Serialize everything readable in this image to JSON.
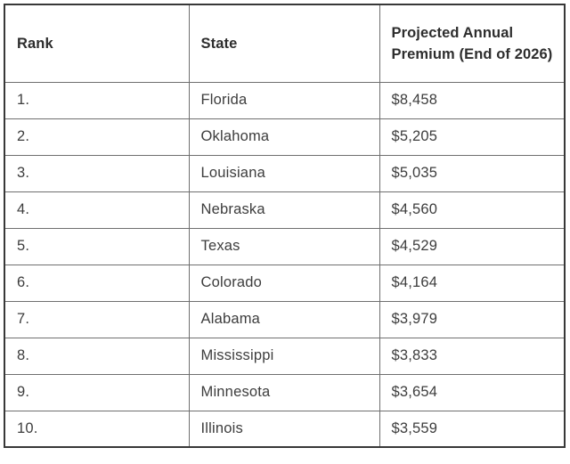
{
  "colors": {
    "background": "#ffffff",
    "cell_text": "#3d3d3d",
    "header_text": "#2d2d2d",
    "inner_border": "#6f6f6f",
    "outer_border": "#383838"
  },
  "table": {
    "columns": [
      "Rank",
      "State",
      "Projected Annual Premium (End of 2026)"
    ],
    "rows": [
      [
        "1.",
        "Florida",
        "$8,458"
      ],
      [
        "2.",
        "Oklahoma",
        "$5,205"
      ],
      [
        "3.",
        "Louisiana",
        "$5,035"
      ],
      [
        "4.",
        "Nebraska",
        "$4,560"
      ],
      [
        "5.",
        "Texas",
        "$4,529"
      ],
      [
        "6.",
        "Colorado",
        "$4,164"
      ],
      [
        "7.",
        "Alabama",
        "$3,979"
      ],
      [
        "8.",
        "Mississippi",
        "$3,833"
      ],
      [
        "9.",
        "Minnesota",
        "$3,654"
      ],
      [
        "10.",
        "Illinois",
        "$3,559"
      ]
    ]
  },
  "chart_data": {
    "type": "table",
    "title": "",
    "columns": [
      "Rank",
      "State",
      "Projected Annual Premium (End of 2026)"
    ],
    "categories": [
      "Florida",
      "Oklahoma",
      "Louisiana",
      "Nebraska",
      "Texas",
      "Colorado",
      "Alabama",
      "Mississippi",
      "Minnesota",
      "Illinois"
    ],
    "ranks": [
      1,
      2,
      3,
      4,
      5,
      6,
      7,
      8,
      9,
      10
    ],
    "values": [
      8458,
      5205,
      5035,
      4560,
      4529,
      4164,
      3979,
      3833,
      3654,
      3559
    ],
    "value_unit": "USD annual premium, projected end of 2026"
  }
}
